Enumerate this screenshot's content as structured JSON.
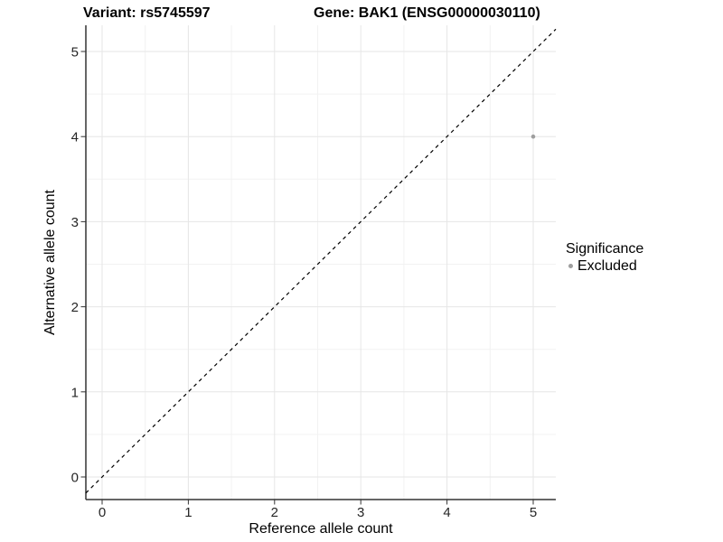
{
  "chart_data": {
    "type": "scatter",
    "title_left": "Variant: rs5745597",
    "title_right": "Gene: BAK1 (ENSG00000030110)",
    "xlabel": "Reference allele count",
    "ylabel": "Alternative allele count",
    "xlim": [
      -0.19,
      5.26
    ],
    "ylim": [
      -0.27,
      5.31
    ],
    "x_ticks": [
      0,
      1,
      2,
      3,
      4,
      5
    ],
    "y_ticks": [
      0,
      1,
      2,
      3,
      4,
      5
    ],
    "grid": "major+minor",
    "identity_line": {
      "style": "dashed",
      "slope": 1,
      "intercept": 0
    },
    "series": [
      {
        "name": "Excluded",
        "points": [
          {
            "x": 5,
            "y": 4
          }
        ]
      }
    ],
    "legend": {
      "title": "Significance",
      "position": "right",
      "items": [
        {
          "label": "Excluded",
          "color": "#9e9e9e"
        }
      ]
    },
    "colors": {
      "point_excluded": "#9e9e9e",
      "grid_major": "#e6e6e6",
      "grid_minor": "#f2f2f2",
      "axis_line": "#333333",
      "tick_text": "#262626",
      "title_text": "#000000",
      "identity_line": "#000000"
    }
  }
}
